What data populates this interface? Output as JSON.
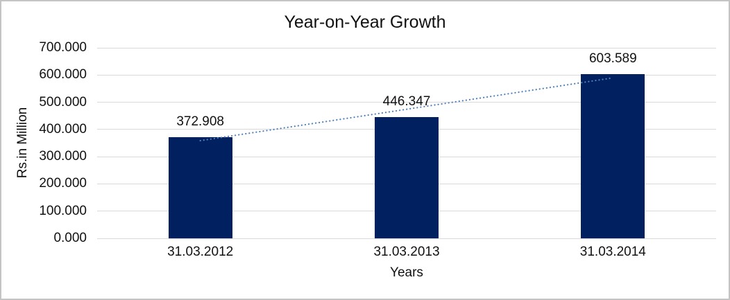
{
  "chart_data": {
    "type": "bar",
    "title": "Year-on-Year Growth",
    "xlabel": "Years",
    "ylabel": "Rs.in Million",
    "categories": [
      "31.03.2012",
      "31.03.2013",
      "31.03.2014"
    ],
    "values": [
      372.908,
      446.347,
      603.589
    ],
    "value_labels": [
      "372.908",
      "446.347",
      "603.589"
    ],
    "ylim": [
      0,
      700
    ],
    "ytick_step": 100,
    "ytick_labels": [
      "0.000",
      "100.000",
      "200.000",
      "300.000",
      "400.000",
      "500.000",
      "600.000",
      "700.000"
    ],
    "grid": true,
    "legend": "none",
    "bar_color": "#002060",
    "gridline_color": "#d9d9d9",
    "text_color": "#111111",
    "trendline": {
      "type": "linear",
      "style": "dotted",
      "color": "#4f81bd",
      "y_start": 358.9,
      "y_end": 589.6
    }
  }
}
